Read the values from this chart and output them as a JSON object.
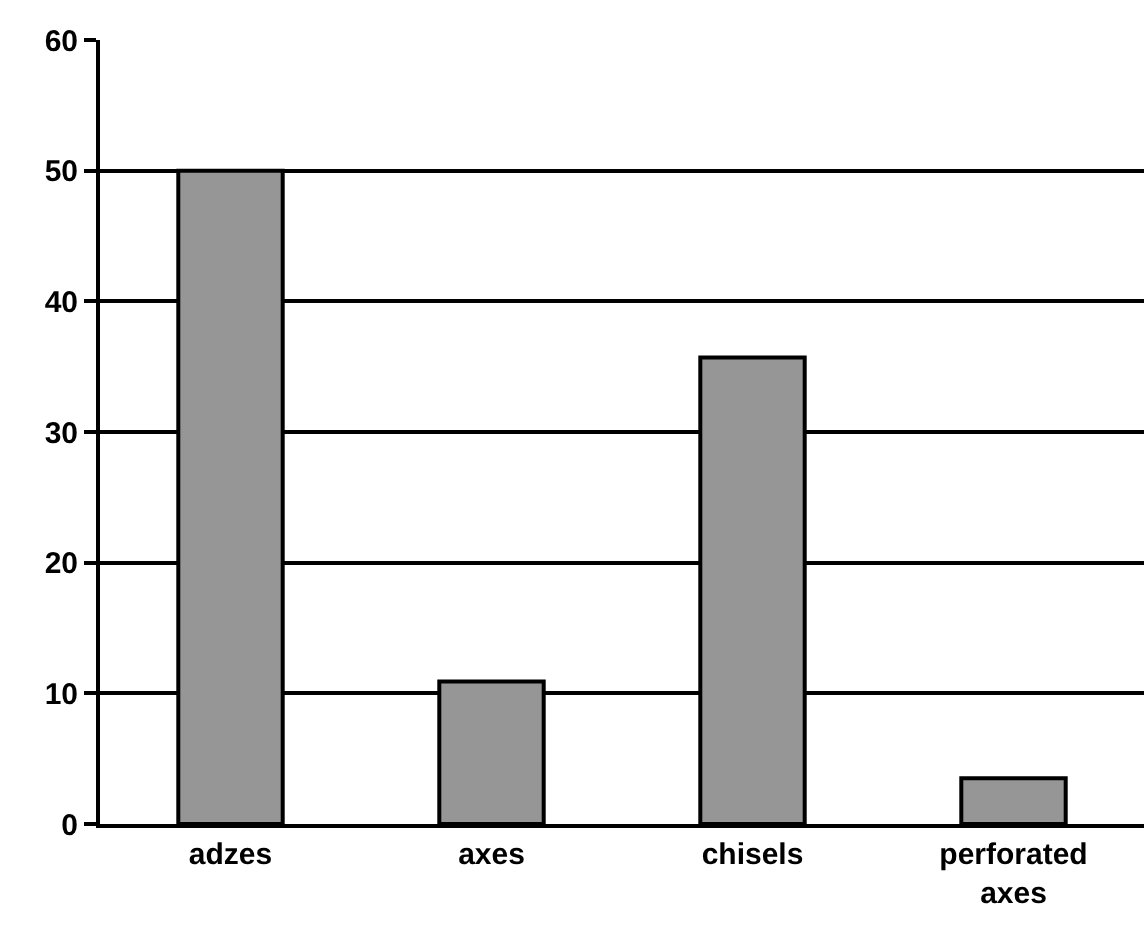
{
  "chart_data": {
    "type": "bar",
    "categories": [
      "adzes",
      "axes",
      "chisels",
      "perforated axes"
    ],
    "values": [
      50,
      10.9,
      35.7,
      3.5
    ],
    "color": "#969696",
    "ylim": [
      0,
      60
    ],
    "yticks": [
      0,
      10,
      20,
      30,
      40,
      50,
      60
    ],
    "grid": "y"
  }
}
